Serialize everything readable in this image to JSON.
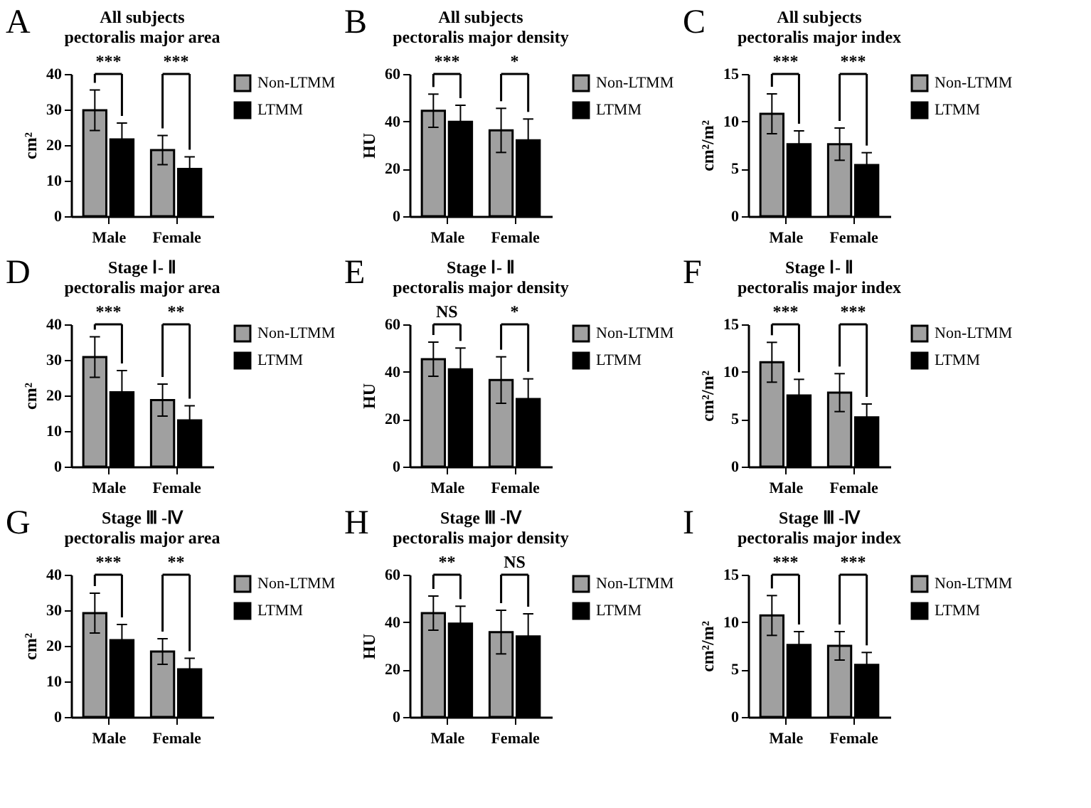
{
  "chart_data": [
    {
      "type": "bar",
      "title": "All subjects",
      "subtitle": "pectoralis major area",
      "ylabel": "cm²",
      "categories": [
        "Male",
        "Female"
      ],
      "ylim": [
        0,
        40
      ],
      "yticks": [
        0,
        10,
        20,
        30,
        40
      ],
      "legend": "right",
      "grid": false,
      "series": [
        {
          "name": "Non-LTMM",
          "color": "#a0a0a0",
          "values": [
            29.8,
            18.6
          ],
          "errors": [
            5.7,
            4.1
          ]
        },
        {
          "name": "LTMM",
          "color": "#000000",
          "values": [
            21.6,
            13.3
          ],
          "errors": [
            4.6,
            3.4
          ]
        }
      ],
      "annotations": [
        "A",
        "***",
        "***"
      ]
    },
    {
      "type": "bar",
      "title": "All subjects",
      "subtitle": "pectoralis major density",
      "ylabel": "HU",
      "categories": [
        "Male",
        "Female"
      ],
      "ylim": [
        0,
        60
      ],
      "yticks": [
        0,
        20,
        40,
        60
      ],
      "legend": "right",
      "grid": false,
      "series": [
        {
          "name": "Non-LTMM",
          "color": "#a0a0a0",
          "values": [
            44.5,
            36.2
          ],
          "errors": [
            7,
            9.3
          ]
        },
        {
          "name": "LTMM",
          "color": "#000000",
          "values": [
            39.8,
            32
          ],
          "errors": [
            7,
            9
          ]
        }
      ],
      "annotations": [
        "B",
        "***",
        "*"
      ]
    },
    {
      "type": "bar",
      "title": "All subjects",
      "subtitle": "pectoralis major index",
      "ylabel": "cm²/m²",
      "categories": [
        "Male",
        "Female"
      ],
      "ylim": [
        0,
        15
      ],
      "yticks": [
        0,
        5,
        10,
        15
      ],
      "legend": "right",
      "grid": false,
      "series": [
        {
          "name": "Non-LTMM",
          "color": "#a0a0a0",
          "values": [
            10.8,
            7.6
          ],
          "errors": [
            2.1,
            1.7
          ]
        },
        {
          "name": "LTMM",
          "color": "#000000",
          "values": [
            7.6,
            5.4
          ],
          "errors": [
            1.4,
            1.3
          ]
        }
      ],
      "annotations": [
        "C",
        "***",
        "***"
      ]
    },
    {
      "type": "bar",
      "title": "Stage Ⅰ- Ⅱ",
      "subtitle": "pectoralis major area",
      "ylabel": "cm²",
      "categories": [
        "Male",
        "Female"
      ],
      "ylim": [
        0,
        40
      ],
      "yticks": [
        0,
        10,
        20,
        30,
        40
      ],
      "legend": "right",
      "grid": false,
      "series": [
        {
          "name": "Non-LTMM",
          "color": "#a0a0a0",
          "values": [
            30.8,
            18.7
          ],
          "errors": [
            5.7,
            4.5
          ]
        },
        {
          "name": "LTMM",
          "color": "#000000",
          "values": [
            20.9,
            13
          ],
          "errors": [
            6.1,
            4.1
          ]
        }
      ],
      "annotations": [
        "D",
        "***",
        "**"
      ]
    },
    {
      "type": "bar",
      "title": "Stage Ⅰ- Ⅱ",
      "subtitle": "pectoralis major density",
      "ylabel": "HU",
      "categories": [
        "Male",
        "Female"
      ],
      "ylim": [
        0,
        60
      ],
      "yticks": [
        0,
        20,
        40,
        60
      ],
      "legend": "right",
      "grid": false,
      "series": [
        {
          "name": "Non-LTMM",
          "color": "#a0a0a0",
          "values": [
            45.3,
            36.5
          ],
          "errors": [
            7.2,
            9.8
          ]
        },
        {
          "name": "LTMM",
          "color": "#000000",
          "values": [
            41,
            28.5
          ],
          "errors": [
            9,
            8.5
          ]
        }
      ],
      "annotations": [
        "E",
        "NS",
        "*"
      ]
    },
    {
      "type": "bar",
      "title": "Stage Ⅰ- Ⅱ",
      "subtitle": "pectoralis major index",
      "ylabel": "cm²/m²",
      "categories": [
        "Male",
        "Female"
      ],
      "ylim": [
        0,
        15
      ],
      "yticks": [
        0,
        5,
        10,
        15
      ],
      "legend": "right",
      "grid": false,
      "series": [
        {
          "name": "Non-LTMM",
          "color": "#a0a0a0",
          "values": [
            11,
            7.8
          ],
          "errors": [
            2.1,
            2
          ]
        },
        {
          "name": "LTMM",
          "color": "#000000",
          "values": [
            7.5,
            5.2
          ],
          "errors": [
            1.7,
            1.4
          ]
        }
      ],
      "annotations": [
        "F",
        "***",
        "***"
      ]
    },
    {
      "type": "bar",
      "title": "Stage Ⅲ -Ⅳ",
      "subtitle": "pectoralis major area",
      "ylabel": "cm²",
      "categories": [
        "Male",
        "Female"
      ],
      "ylim": [
        0,
        40
      ],
      "yticks": [
        0,
        10,
        20,
        30,
        40
      ],
      "legend": "right",
      "grid": false,
      "series": [
        {
          "name": "Non-LTMM",
          "color": "#a0a0a0",
          "values": [
            29.2,
            18.4
          ],
          "errors": [
            5.6,
            3.6
          ]
        },
        {
          "name": "LTMM",
          "color": "#000000",
          "values": [
            21.6,
            13.4
          ],
          "errors": [
            4.4,
            3.1
          ]
        }
      ],
      "annotations": [
        "G",
        "***",
        "**"
      ]
    },
    {
      "type": "bar",
      "title": "Stage Ⅲ -Ⅳ",
      "subtitle": "pectoralis major density",
      "ylabel": "HU",
      "categories": [
        "Male",
        "Female"
      ],
      "ylim": [
        0,
        60
      ],
      "yticks": [
        0,
        20,
        40,
        60
      ],
      "legend": "right",
      "grid": false,
      "series": [
        {
          "name": "Non-LTMM",
          "color": "#a0a0a0",
          "values": [
            43.8,
            35.8
          ],
          "errors": [
            7.2,
            9.2
          ]
        },
        {
          "name": "LTMM",
          "color": "#000000",
          "values": [
            39.4,
            34
          ],
          "errors": [
            7.3,
            9.5
          ]
        }
      ],
      "annotations": [
        "H",
        "**",
        "NS"
      ]
    },
    {
      "type": "bar",
      "title": "Stage Ⅲ -Ⅳ",
      "subtitle": "pectoralis major index",
      "ylabel": "cm²/m²",
      "categories": [
        "Male",
        "Female"
      ],
      "ylim": [
        0,
        15
      ],
      "yticks": [
        0,
        5,
        10,
        15
      ],
      "legend": "right",
      "grid": false,
      "series": [
        {
          "name": "Non-LTMM",
          "color": "#a0a0a0",
          "values": [
            10.7,
            7.5
          ],
          "errors": [
            2.1,
            1.5
          ]
        },
        {
          "name": "LTMM",
          "color": "#000000",
          "values": [
            7.6,
            5.5
          ],
          "errors": [
            1.4,
            1.3
          ]
        }
      ],
      "annotations": [
        "I",
        "***",
        "***"
      ]
    }
  ]
}
